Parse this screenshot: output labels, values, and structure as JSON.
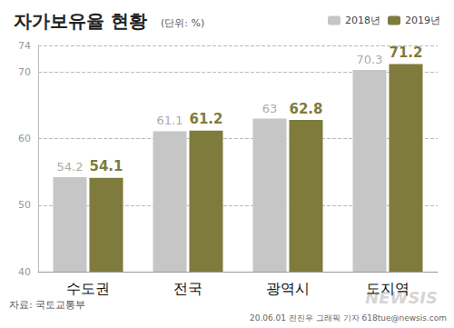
{
  "chart_data": {
    "type": "bar",
    "title": "자가보유율 현황",
    "subtitle": "(단위: %)",
    "categories": [
      "수도권",
      "전국",
      "광역시",
      "도지역"
    ],
    "series": [
      {
        "name": "2018년",
        "color": "#c6c6c6",
        "values": [
          54.2,
          61.1,
          63,
          70.3
        ]
      },
      {
        "name": "2019년",
        "color": "#7f7b3c",
        "values": [
          54.1,
          61.2,
          62.8,
          71.2
        ]
      }
    ],
    "ylim": [
      40,
      74
    ],
    "yticks": [
      40,
      50,
      60,
      70
    ],
    "grid": true,
    "legend": "upper right",
    "data_labels": true,
    "annotations": [
      "자료: 국토교통부",
      "20.06.01 전진우 그래픽 기자 618tue@newsis.com",
      "NEWSIS"
    ]
  }
}
